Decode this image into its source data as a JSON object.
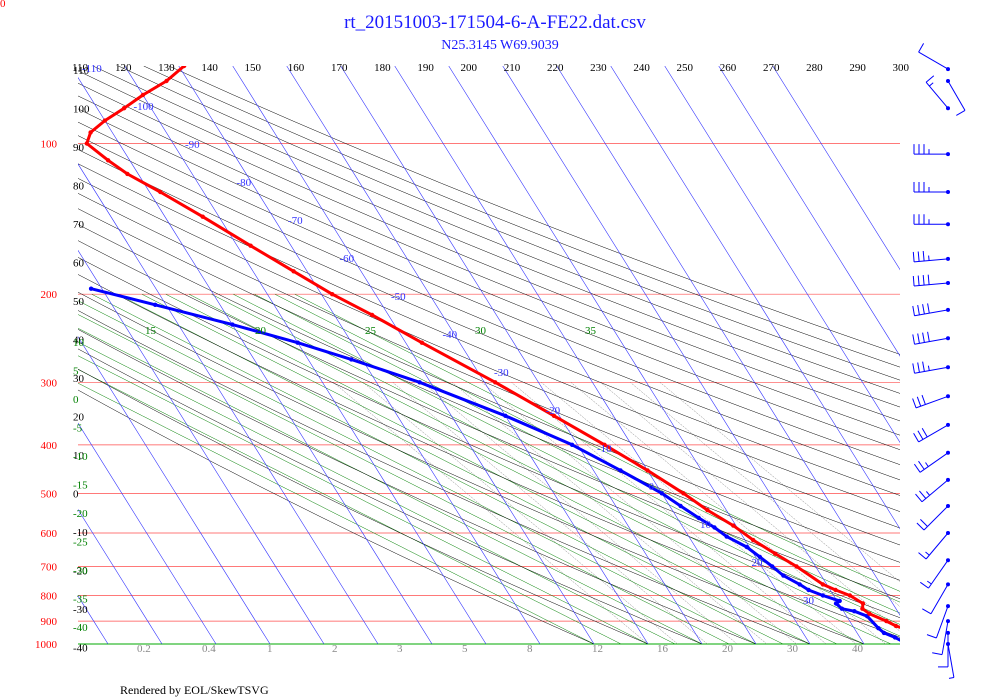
{
  "chart_data": {
    "type": "skew-t",
    "title": "rt_20151003-171504-6-A-FE22.dat.csv",
    "subtitle": "N25.3145 W69.9039",
    "footer": "Rendered by EOL/SkewTSVG",
    "corner_label": "0",
    "pressure_levels": [
      100,
      200,
      300,
      400,
      500,
      600,
      700,
      800,
      900,
      1000
    ],
    "top_ticks": [
      110,
      120,
      130,
      140,
      150,
      160,
      170,
      180,
      190,
      200,
      210,
      220,
      230,
      240,
      250,
      260,
      270,
      280,
      290,
      300
    ],
    "theta_labels": [
      110,
      100,
      90,
      80,
      70,
      60,
      50,
      40,
      30,
      20,
      10,
      0,
      -10,
      -20,
      -30,
      -40
    ],
    "isotherm_labels": [
      -110,
      -100,
      -90,
      -80,
      -70,
      -60,
      -50,
      -40,
      -30,
      -20,
      -10,
      0,
      10,
      20,
      30
    ],
    "moist_adiabat_labels": [
      "15",
      "20",
      "25",
      "30",
      "35"
    ],
    "moist_adiabat_left_labels": [
      "10",
      "5",
      "0",
      "-5",
      "-10",
      "-15",
      "-20",
      "-25",
      "-30",
      "-35",
      "-40"
    ],
    "mixing_ratio_labels": [
      "0.2",
      "0.4",
      "1",
      "2",
      "3",
      "5",
      "8",
      "12",
      "16",
      "20",
      "30",
      "40"
    ],
    "temperature_profile": [
      {
        "p": 1000,
        "t": 26.0
      },
      {
        "p": 980,
        "t": 24.0
      },
      {
        "p": 950,
        "t": 21.0
      },
      {
        "p": 920,
        "t": 18.0
      },
      {
        "p": 900,
        "t": 16.8
      },
      {
        "p": 870,
        "t": 14.5
      },
      {
        "p": 850,
        "t": 13.8
      },
      {
        "p": 830,
        "t": 14.5
      },
      {
        "p": 800,
        "t": 13.0
      },
      {
        "p": 780,
        "t": 11.0
      },
      {
        "p": 760,
        "t": 9.3
      },
      {
        "p": 700,
        "t": 6.5
      },
      {
        "p": 660,
        "t": 4.0
      },
      {
        "p": 620,
        "t": 1.5
      },
      {
        "p": 580,
        "t": -0.5
      },
      {
        "p": 540,
        "t": -3.5
      },
      {
        "p": 500,
        "t": -6.0
      },
      {
        "p": 450,
        "t": -10.0
      },
      {
        "p": 400,
        "t": -15.0
      },
      {
        "p": 350,
        "t": -21.0
      },
      {
        "p": 300,
        "t": -28.0
      },
      {
        "p": 250,
        "t": -37.0
      },
      {
        "p": 220,
        "t": -43.0
      },
      {
        "p": 200,
        "t": -48.0
      },
      {
        "p": 180,
        "t": -52.5
      },
      {
        "p": 160,
        "t": -57.5
      },
      {
        "p": 140,
        "t": -63.0
      },
      {
        "p": 125,
        "t": -68.0
      },
      {
        "p": 115,
        "t": -72.0
      },
      {
        "p": 108,
        "t": -74.0
      },
      {
        "p": 100,
        "t": -76.0
      },
      {
        "p": 95,
        "t": -74.0
      },
      {
        "p": 90,
        "t": -70.0
      },
      {
        "p": 85,
        "t": -65.0
      },
      {
        "p": 80,
        "t": -60.0
      },
      {
        "p": 75,
        "t": -54.0
      },
      {
        "p": 70,
        "t": -49.0
      }
    ],
    "dewpoint_profile": [
      {
        "p": 1000,
        "t": 18.0
      },
      {
        "p": 970,
        "t": 16.5
      },
      {
        "p": 950,
        "t": 15.0
      },
      {
        "p": 930,
        "t": 14.5
      },
      {
        "p": 880,
        "t": 13.8
      },
      {
        "p": 860,
        "t": 12.0
      },
      {
        "p": 850,
        "t": 10.0
      },
      {
        "p": 830,
        "t": 9.5
      },
      {
        "p": 820,
        "t": 10.5
      },
      {
        "p": 800,
        "t": 8.0
      },
      {
        "p": 780,
        "t": 6.0
      },
      {
        "p": 760,
        "t": 5.0
      },
      {
        "p": 730,
        "t": 3.0
      },
      {
        "p": 700,
        "t": 2.0
      },
      {
        "p": 670,
        "t": 0.8
      },
      {
        "p": 640,
        "t": -0.5
      },
      {
        "p": 610,
        "t": -3.0
      },
      {
        "p": 585,
        "t": -4.2
      },
      {
        "p": 560,
        "t": -6.0
      },
      {
        "p": 530,
        "t": -8.0
      },
      {
        "p": 500,
        "t": -10.0
      },
      {
        "p": 450,
        "t": -15.0
      },
      {
        "p": 400,
        "t": -21.0
      },
      {
        "p": 350,
        "t": -30.0
      },
      {
        "p": 300,
        "t": -42.0
      },
      {
        "p": 270,
        "t": -52.0
      },
      {
        "p": 250,
        "t": -60.0
      },
      {
        "p": 230,
        "t": -70.0
      },
      {
        "p": 210,
        "t": -82.0
      },
      {
        "p": 195,
        "t": -92.0
      }
    ],
    "wind_barbs": [
      {
        "p": 55,
        "speed": 10,
        "dir": 300
      },
      {
        "p": 75,
        "speed": 10,
        "dir": 150
      },
      {
        "p": 85,
        "speed": 15,
        "dir": 320
      },
      {
        "p": 105,
        "speed": 35,
        "dir": 270
      },
      {
        "p": 125,
        "speed": 35,
        "dir": 270
      },
      {
        "p": 145,
        "speed": 35,
        "dir": 270
      },
      {
        "p": 170,
        "speed": 35,
        "dir": 265
      },
      {
        "p": 190,
        "speed": 40,
        "dir": 265
      },
      {
        "p": 215,
        "speed": 40,
        "dir": 260
      },
      {
        "p": 245,
        "speed": 40,
        "dir": 260
      },
      {
        "p": 280,
        "speed": 35,
        "dir": 260
      },
      {
        "p": 320,
        "speed": 30,
        "dir": 250
      },
      {
        "p": 365,
        "speed": 30,
        "dir": 240
      },
      {
        "p": 415,
        "speed": 25,
        "dir": 235
      },
      {
        "p": 470,
        "speed": 25,
        "dir": 230
      },
      {
        "p": 530,
        "speed": 20,
        "dir": 225
      },
      {
        "p": 600,
        "speed": 15,
        "dir": 220
      },
      {
        "p": 680,
        "speed": 15,
        "dir": 215
      },
      {
        "p": 760,
        "speed": 10,
        "dir": 210
      },
      {
        "p": 840,
        "speed": 10,
        "dir": 200
      },
      {
        "p": 900,
        "speed": 10,
        "dir": 190
      },
      {
        "p": 950,
        "speed": 10,
        "dir": 180
      },
      {
        "p": 1000,
        "speed": 5,
        "dir": 170
      }
    ],
    "colors": {
      "title": "#1a1aff",
      "pressure_line": "#ff4d4d",
      "pressure_label": "#ff0000",
      "isotherm": "#3333ff",
      "dry_adiabat": "#000000",
      "moist_adiabat": "#008000",
      "mixing_ratio": "#888888",
      "temperature": "#ff0000",
      "dewpoint": "#0000ff",
      "wind_barb": "#0000ff"
    }
  }
}
